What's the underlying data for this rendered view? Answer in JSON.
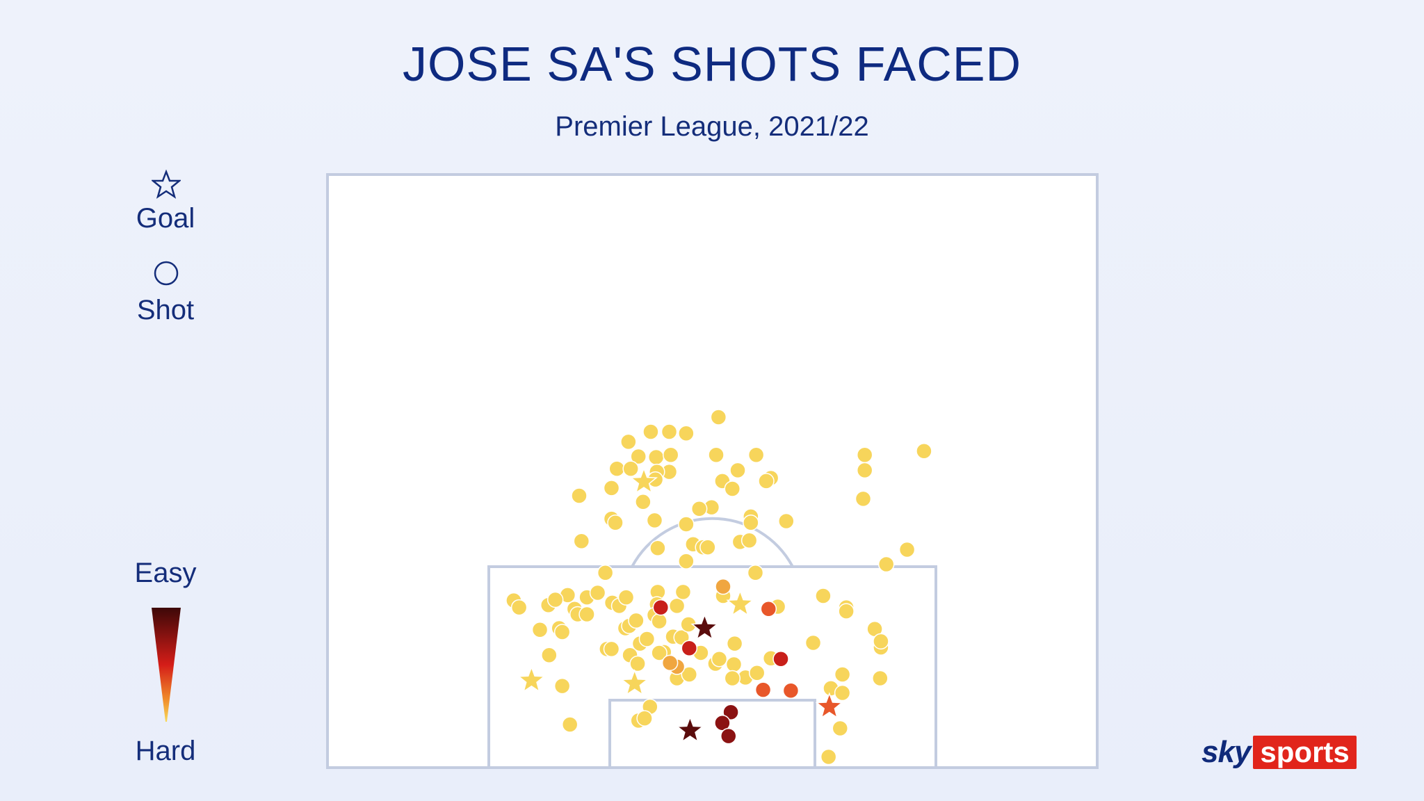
{
  "header": {
    "title": "JOSE SA'S SHOTS FACED",
    "subtitle": "Premier League, 2021/22"
  },
  "legend": {
    "goal_label": "Goal",
    "shot_label": "Shot",
    "easy_label": "Easy",
    "hard_label": "Hard",
    "goal_icon": "star-outline-icon",
    "shot_icon": "circle-outline-icon"
  },
  "brand": {
    "sky": "sky",
    "sports": "sports",
    "sports_bg": "#e1251b"
  },
  "chart_data": {
    "type": "scatter",
    "title": "JOSE SA'S SHOTS FACED",
    "subtitle": "Premier League, 2021/22",
    "xlabel": "",
    "ylabel": "",
    "xlim": [
      0,
      100
    ],
    "ylim": [
      0,
      77
    ],
    "grid": false,
    "colors": {
      "easy": "#4a0a0a",
      "mid": "#e0201a",
      "hard": "#f8d44a",
      "c1": "#f7d55b",
      "c2": "#f0a640",
      "c3": "#e8572a",
      "c4": "#c81f1a",
      "c5": "#8b1212",
      "c6": "#5a0c0c"
    },
    "shots": [
      {
        "x": 50.8,
        "y": 45.5,
        "c": 1
      },
      {
        "x": 39.1,
        "y": 42.3,
        "c": 1
      },
      {
        "x": 42.0,
        "y": 43.6,
        "c": 1
      },
      {
        "x": 44.4,
        "y": 43.6,
        "c": 1
      },
      {
        "x": 46.6,
        "y": 43.4,
        "c": 1
      },
      {
        "x": 40.4,
        "y": 40.4,
        "c": 1
      },
      {
        "x": 42.7,
        "y": 40.3,
        "c": 1
      },
      {
        "x": 44.6,
        "y": 40.6,
        "c": 1
      },
      {
        "x": 37.6,
        "y": 38.8,
        "c": 1
      },
      {
        "x": 39.4,
        "y": 38.8,
        "c": 1
      },
      {
        "x": 44.4,
        "y": 38.4,
        "c": 1
      },
      {
        "x": 42.8,
        "y": 38.4,
        "c": 1
      },
      {
        "x": 42.6,
        "y": 37.4,
        "c": 1
      },
      {
        "x": 50.5,
        "y": 40.6,
        "c": 1
      },
      {
        "x": 55.7,
        "y": 40.6,
        "c": 1
      },
      {
        "x": 53.3,
        "y": 38.6,
        "c": 1
      },
      {
        "x": 51.3,
        "y": 37.2,
        "c": 1
      },
      {
        "x": 52.6,
        "y": 36.2,
        "c": 1
      },
      {
        "x": 57.6,
        "y": 37.6,
        "c": 1
      },
      {
        "x": 57.0,
        "y": 37.2,
        "c": 1
      },
      {
        "x": 69.8,
        "y": 40.6,
        "c": 1
      },
      {
        "x": 69.8,
        "y": 38.6,
        "c": 1
      },
      {
        "x": 69.6,
        "y": 34.9,
        "c": 1
      },
      {
        "x": 77.5,
        "y": 41.1,
        "c": 1
      },
      {
        "x": 41.0,
        "y": 34.5,
        "c": 1
      },
      {
        "x": 32.7,
        "y": 35.3,
        "c": 1
      },
      {
        "x": 36.9,
        "y": 36.3,
        "c": 1
      },
      {
        "x": 36.9,
        "y": 32.3,
        "c": 1
      },
      {
        "x": 37.4,
        "y": 31.8,
        "c": 1
      },
      {
        "x": 49.9,
        "y": 33.8,
        "c": 1
      },
      {
        "x": 48.3,
        "y": 33.6,
        "c": 1
      },
      {
        "x": 42.5,
        "y": 32.1,
        "c": 1
      },
      {
        "x": 46.6,
        "y": 31.6,
        "c": 1
      },
      {
        "x": 55.0,
        "y": 32.6,
        "c": 1
      },
      {
        "x": 55.0,
        "y": 31.8,
        "c": 1
      },
      {
        "x": 59.6,
        "y": 32.0,
        "c": 1
      },
      {
        "x": 33.0,
        "y": 29.4,
        "c": 1
      },
      {
        "x": 42.9,
        "y": 28.5,
        "c": 1
      },
      {
        "x": 47.5,
        "y": 29.0,
        "c": 1
      },
      {
        "x": 48.8,
        "y": 28.6,
        "c": 1
      },
      {
        "x": 49.4,
        "y": 28.6,
        "c": 1
      },
      {
        "x": 53.6,
        "y": 29.3,
        "c": 1
      },
      {
        "x": 54.8,
        "y": 29.5,
        "c": 1
      },
      {
        "x": 75.3,
        "y": 28.3,
        "c": 1
      },
      {
        "x": 46.6,
        "y": 26.8,
        "c": 1
      },
      {
        "x": 72.6,
        "y": 26.4,
        "c": 1
      },
      {
        "x": 31.2,
        "y": 22.4,
        "c": 1
      },
      {
        "x": 33.7,
        "y": 22.1,
        "c": 1
      },
      {
        "x": 35.1,
        "y": 22.7,
        "c": 1
      },
      {
        "x": 37.0,
        "y": 21.4,
        "c": 1
      },
      {
        "x": 37.9,
        "y": 21.0,
        "c": 1
      },
      {
        "x": 38.8,
        "y": 22.1,
        "c": 1
      },
      {
        "x": 42.9,
        "y": 22.8,
        "c": 1
      },
      {
        "x": 42.8,
        "y": 21.2,
        "c": 1
      },
      {
        "x": 45.4,
        "y": 21.0,
        "c": 1
      },
      {
        "x": 46.2,
        "y": 22.8,
        "c": 1
      },
      {
        "x": 51.4,
        "y": 22.3,
        "c": 1
      },
      {
        "x": 55.6,
        "y": 25.3,
        "c": 1
      },
      {
        "x": 58.5,
        "y": 20.9,
        "c": 1
      },
      {
        "x": 64.4,
        "y": 22.3,
        "c": 1
      },
      {
        "x": 67.4,
        "y": 20.8,
        "c": 1
      },
      {
        "x": 67.4,
        "y": 20.3,
        "c": 1
      },
      {
        "x": 36.1,
        "y": 25.3,
        "c": 1
      },
      {
        "x": 24.2,
        "y": 21.7,
        "c": 1
      },
      {
        "x": 24.9,
        "y": 20.8,
        "c": 1
      },
      {
        "x": 28.7,
        "y": 21.1,
        "c": 1
      },
      {
        "x": 29.6,
        "y": 21.8,
        "c": 1
      },
      {
        "x": 32.1,
        "y": 20.6,
        "c": 1
      },
      {
        "x": 32.5,
        "y": 19.9,
        "c": 1
      },
      {
        "x": 33.7,
        "y": 19.9,
        "c": 1
      },
      {
        "x": 30.1,
        "y": 18.1,
        "c": 1
      },
      {
        "x": 30.5,
        "y": 17.6,
        "c": 1
      },
      {
        "x": 27.6,
        "y": 17.9,
        "c": 1
      },
      {
        "x": 38.7,
        "y": 18.1,
        "c": 1
      },
      {
        "x": 39.2,
        "y": 18.4,
        "c": 1
      },
      {
        "x": 40.1,
        "y": 19.1,
        "c": 1
      },
      {
        "x": 42.5,
        "y": 19.8,
        "c": 1
      },
      {
        "x": 43.1,
        "y": 19.0,
        "c": 1
      },
      {
        "x": 40.6,
        "y": 16.1,
        "c": 1
      },
      {
        "x": 41.5,
        "y": 16.7,
        "c": 1
      },
      {
        "x": 44.9,
        "y": 17.0,
        "c": 1
      },
      {
        "x": 46.0,
        "y": 16.9,
        "c": 1
      },
      {
        "x": 46.9,
        "y": 18.6,
        "c": 1
      },
      {
        "x": 52.9,
        "y": 16.1,
        "c": 1
      },
      {
        "x": 63.1,
        "y": 16.2,
        "c": 1
      },
      {
        "x": 71.1,
        "y": 18.0,
        "c": 1
      },
      {
        "x": 71.9,
        "y": 15.6,
        "c": 1
      },
      {
        "x": 71.9,
        "y": 16.4,
        "c": 1
      },
      {
        "x": 28.8,
        "y": 14.6,
        "c": 1
      },
      {
        "x": 36.3,
        "y": 15.4,
        "c": 1
      },
      {
        "x": 36.9,
        "y": 15.4,
        "c": 1
      },
      {
        "x": 39.3,
        "y": 14.6,
        "c": 1
      },
      {
        "x": 40.3,
        "y": 13.5,
        "c": 1
      },
      {
        "x": 43.7,
        "y": 15.0,
        "c": 1
      },
      {
        "x": 43.1,
        "y": 14.9,
        "c": 1
      },
      {
        "x": 48.5,
        "y": 14.9,
        "c": 1
      },
      {
        "x": 50.4,
        "y": 13.5,
        "c": 1
      },
      {
        "x": 50.9,
        "y": 14.1,
        "c": 1
      },
      {
        "x": 52.8,
        "y": 13.4,
        "c": 1
      },
      {
        "x": 54.3,
        "y": 11.7,
        "c": 1
      },
      {
        "x": 55.8,
        "y": 12.3,
        "c": 1
      },
      {
        "x": 57.6,
        "y": 14.2,
        "c": 1
      },
      {
        "x": 45.4,
        "y": 11.6,
        "c": 1
      },
      {
        "x": 47.0,
        "y": 12.1,
        "c": 1
      },
      {
        "x": 52.6,
        "y": 11.6,
        "c": 1
      },
      {
        "x": 71.8,
        "y": 11.6,
        "c": 1
      },
      {
        "x": 66.9,
        "y": 12.1,
        "c": 1
      },
      {
        "x": 65.4,
        "y": 10.3,
        "c": 1
      },
      {
        "x": 66.9,
        "y": 9.7,
        "c": 1
      },
      {
        "x": 30.5,
        "y": 10.6,
        "c": 1
      },
      {
        "x": 41.9,
        "y": 7.9,
        "c": 1
      },
      {
        "x": 40.4,
        "y": 6.1,
        "c": 1
      },
      {
        "x": 41.2,
        "y": 6.4,
        "c": 1
      },
      {
        "x": 31.5,
        "y": 5.6,
        "c": 1
      },
      {
        "x": 66.6,
        "y": 5.1,
        "c": 1
      },
      {
        "x": 65.1,
        "y": 1.4,
        "c": 1
      },
      {
        "x": 51.4,
        "y": 23.5,
        "c": 2
      },
      {
        "x": 45.4,
        "y": 13.1,
        "c": 2
      },
      {
        "x": 59.0,
        "y": 14.1,
        "c": 2
      },
      {
        "x": 44.5,
        "y": 13.6,
        "c": 2
      },
      {
        "x": 56.6,
        "y": 10.1,
        "c": 3
      },
      {
        "x": 60.2,
        "y": 10.0,
        "c": 3
      },
      {
        "x": 57.3,
        "y": 20.6,
        "c": 3
      },
      {
        "x": 43.3,
        "y": 20.8,
        "c": 4
      },
      {
        "x": 58.9,
        "y": 14.1,
        "c": 4
      },
      {
        "x": 47.0,
        "y": 15.5,
        "c": 4
      },
      {
        "x": 52.4,
        "y": 7.2,
        "c": 5
      },
      {
        "x": 51.3,
        "y": 5.8,
        "c": 5
      },
      {
        "x": 52.1,
        "y": 4.1,
        "c": 5
      }
    ],
    "goals": [
      {
        "x": 41.1,
        "y": 37.1,
        "c": 1
      },
      {
        "x": 53.6,
        "y": 21.2,
        "c": 1
      },
      {
        "x": 26.5,
        "y": 11.3,
        "c": 1
      },
      {
        "x": 39.9,
        "y": 10.9,
        "c": 1
      },
      {
        "x": 65.2,
        "y": 7.9,
        "c": 3
      },
      {
        "x": 49.0,
        "y": 18.1,
        "c": 6
      },
      {
        "x": 47.1,
        "y": 4.8,
        "c": 6
      }
    ]
  }
}
